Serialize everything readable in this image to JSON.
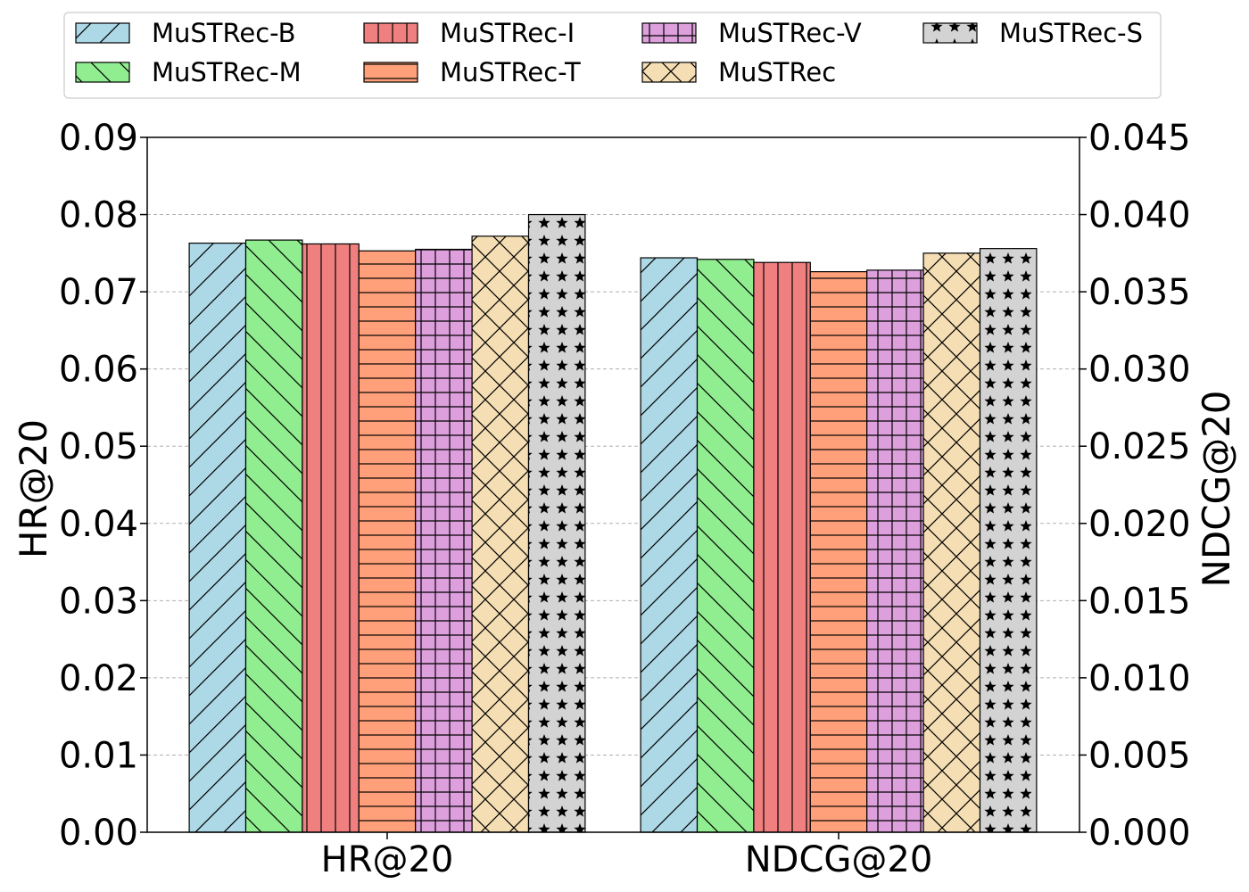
{
  "chart_data": {
    "type": "bar",
    "categories": [
      "HR@20",
      "NDCG@20"
    ],
    "series": [
      {
        "name": "MuSTRec-B",
        "color": "#add8e6",
        "pattern": "diag-right",
        "values": [
          0.0763,
          0.0372
        ]
      },
      {
        "name": "MuSTRec-M",
        "color": "#90ee90",
        "pattern": "diag-left",
        "values": [
          0.0767,
          0.0371
        ]
      },
      {
        "name": "MuSTRec-I",
        "color": "#f08080",
        "pattern": "vertical",
        "values": [
          0.0762,
          0.0369
        ]
      },
      {
        "name": "MuSTRec-T",
        "color": "#ffa07a",
        "pattern": "horizontal",
        "values": [
          0.0753,
          0.0363
        ]
      },
      {
        "name": "MuSTRec-V",
        "color": "#dda0dd",
        "pattern": "grid",
        "values": [
          0.0755,
          0.0364
        ]
      },
      {
        "name": "MuSTRec",
        "color": "#f5deb3",
        "pattern": "cross",
        "values": [
          0.0772,
          0.0375
        ]
      },
      {
        "name": "MuSTRec-S",
        "color": "#d3d3d3",
        "pattern": "stars",
        "values": [
          0.08,
          0.0378
        ]
      }
    ],
    "left_axis": {
      "label": "HR@20",
      "ylim": [
        0,
        0.09
      ],
      "ticks": [
        "0.00",
        "0.01",
        "0.02",
        "0.03",
        "0.04",
        "0.05",
        "0.06",
        "0.07",
        "0.08",
        "0.09"
      ]
    },
    "right_axis": {
      "label": "NDCG@20",
      "ylim": [
        0,
        0.045
      ],
      "ticks": [
        "0.000",
        "0.005",
        "0.010",
        "0.015",
        "0.020",
        "0.025",
        "0.030",
        "0.035",
        "0.040",
        "0.045"
      ]
    },
    "grid": true,
    "legend_position": "top"
  }
}
